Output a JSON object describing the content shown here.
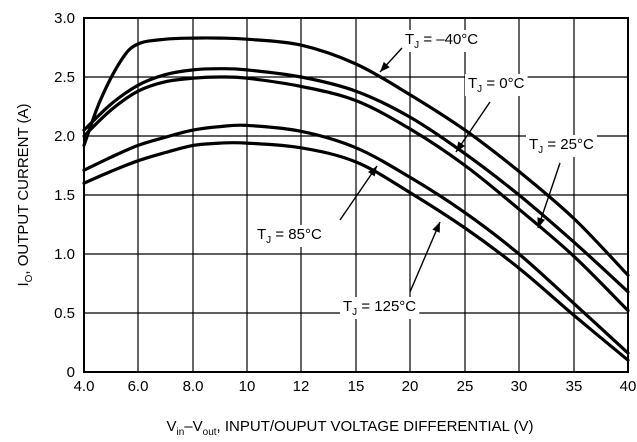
{
  "chart_data": {
    "type": "line",
    "xlabel": {
      "prefix": "V",
      "sub1": "in",
      "mid": "–V",
      "sub2": "out",
      "rest": ", INPUT/OUPUT VOLTAGE DIFFERENTIAL (V)"
    },
    "ylabel": {
      "prefix": "I",
      "sub": "O",
      "rest": ", OUTPUT CURRENT (A)"
    },
    "x_tick_labels": [
      "4.0",
      "6.0",
      "8.0",
      "10",
      "12",
      "15",
      "20",
      "25",
      "30",
      "35",
      "40"
    ],
    "y_ticks": [
      0,
      0.5,
      1.0,
      1.5,
      2.0,
      2.5,
      3.0
    ],
    "y_tick_labels": [
      "0",
      "0.5",
      "1.0",
      "1.5",
      "2.0",
      "2.5",
      "3.0"
    ],
    "ylim": [
      0,
      3.0
    ],
    "grid": true,
    "series": [
      {
        "name": "T_J = −40°C",
        "label_parts": [
          "T",
          "J",
          " = –40°C"
        ],
        "x": [
          4.0,
          4.6,
          5.4,
          6.0,
          7.0,
          8.0,
          9.0,
          10,
          12,
          15,
          20,
          25,
          30,
          35,
          40
        ],
        "y": [
          1.92,
          2.3,
          2.65,
          2.78,
          2.82,
          2.83,
          2.83,
          2.82,
          2.77,
          2.61,
          2.35,
          2.05,
          1.7,
          1.3,
          0.82
        ]
      },
      {
        "name": "T_J = 0°C",
        "label_parts": [
          "T",
          "J",
          " = 0°C"
        ],
        "x": [
          4.0,
          5.0,
          6.0,
          7.0,
          8.0,
          9.0,
          10,
          12,
          15,
          20,
          25,
          30,
          35,
          40
        ],
        "y": [
          2.05,
          2.27,
          2.43,
          2.52,
          2.56,
          2.57,
          2.56,
          2.5,
          2.38,
          2.16,
          1.85,
          1.5,
          1.1,
          0.68
        ]
      },
      {
        "name": "T_J = 25°C",
        "label_parts": [
          "T",
          "J",
          " = 25°C"
        ],
        "x": [
          4.0,
          5.0,
          6.0,
          7.0,
          8.0,
          9.0,
          10,
          12,
          15,
          20,
          25,
          30,
          35,
          40
        ],
        "y": [
          2.0,
          2.22,
          2.38,
          2.46,
          2.49,
          2.5,
          2.49,
          2.42,
          2.3,
          2.06,
          1.75,
          1.38,
          0.98,
          0.52
        ]
      },
      {
        "name": "T_J = 85°C",
        "label_parts": [
          "T",
          "J",
          " = 85°C"
        ],
        "x": [
          4.0,
          5.0,
          6.0,
          7.0,
          8.0,
          9.0,
          10,
          12,
          15,
          20,
          25,
          30,
          35,
          40
        ],
        "y": [
          1.71,
          1.82,
          1.92,
          1.99,
          2.05,
          2.08,
          2.09,
          2.04,
          1.9,
          1.65,
          1.35,
          1.0,
          0.58,
          0.16
        ]
      },
      {
        "name": "T_J = 125°C",
        "label_parts": [
          "T",
          "J",
          " = 125°C"
        ],
        "x": [
          4.0,
          5.0,
          6.0,
          7.0,
          8.0,
          9.0,
          10,
          12,
          15,
          20,
          25,
          30,
          35,
          40
        ],
        "y": [
          1.6,
          1.7,
          1.79,
          1.86,
          1.92,
          1.94,
          1.94,
          1.9,
          1.78,
          1.52,
          1.22,
          0.88,
          0.48,
          0.1
        ]
      }
    ]
  }
}
